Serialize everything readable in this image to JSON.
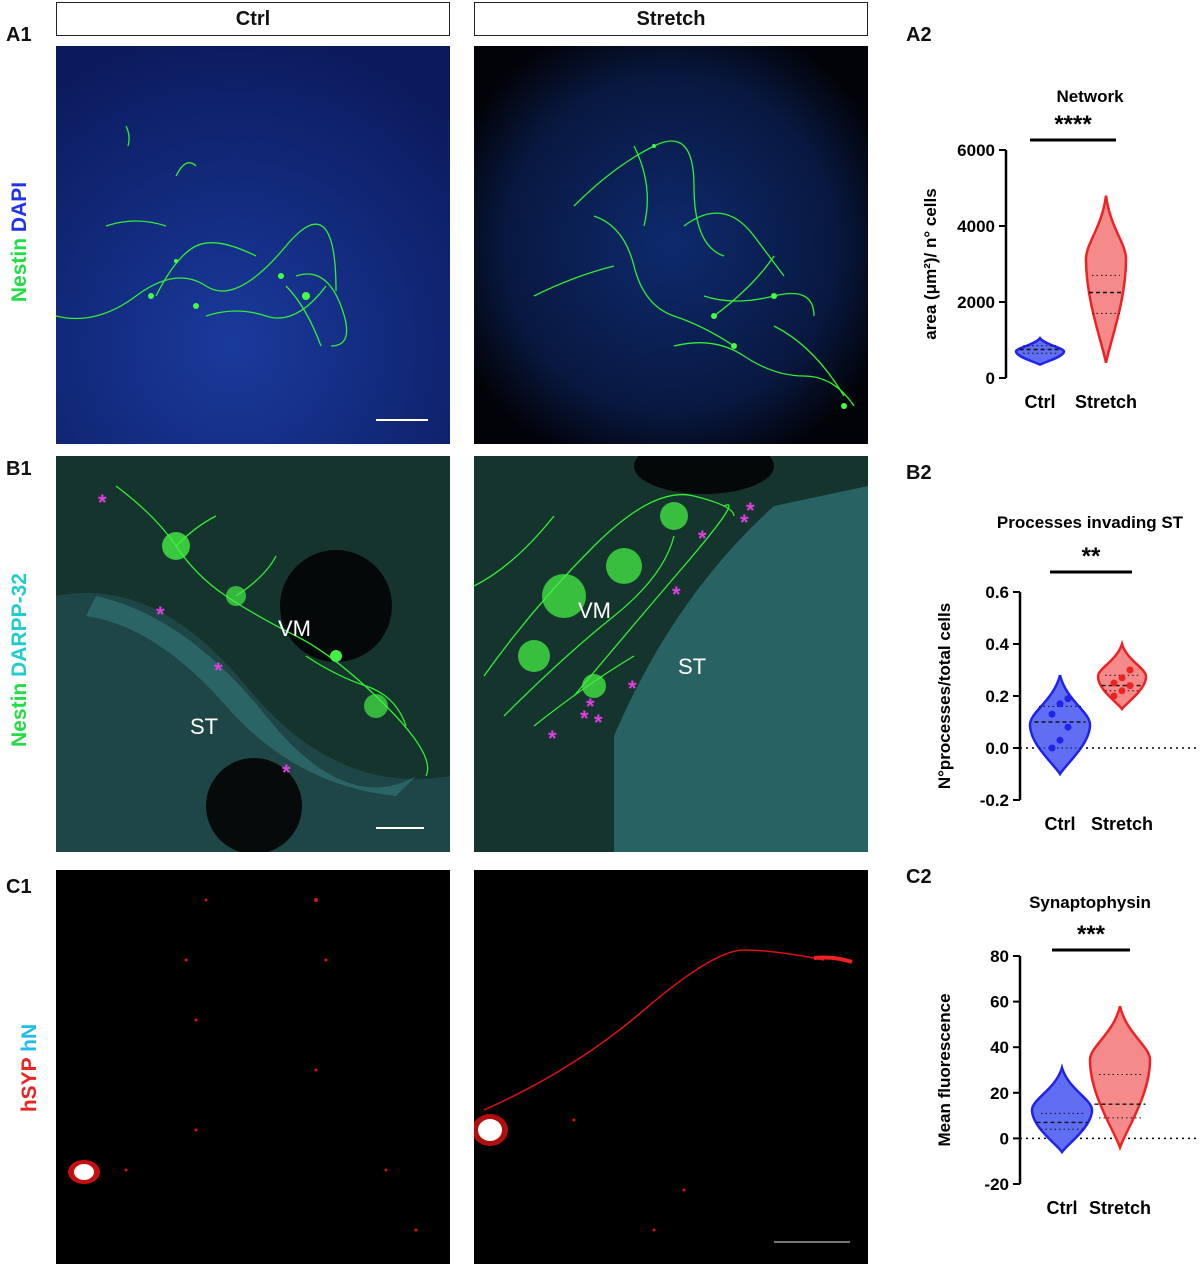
{
  "labels": {
    "a1": "A1",
    "a2": "A2",
    "b1": "B1",
    "b2": "B2",
    "c1": "C1",
    "c2": "C2",
    "col_ctrl": "Ctrl",
    "col_stretch": "Stretch"
  },
  "stain_rows": {
    "a": [
      {
        "text": "Nestin",
        "color": "#22dd44"
      },
      {
        "text": " DAPI",
        "color": "#2233ee"
      }
    ],
    "b": [
      {
        "text": "Nestin",
        "color": "#22dd44"
      },
      {
        "text": " DARPP-32",
        "color": "#22cccc"
      }
    ],
    "c": [
      {
        "text": "hSYP",
        "color": "#ee2222"
      },
      {
        "text": " hN",
        "color": "#22bbee"
      }
    ]
  },
  "image_labels": {
    "b_ctrl_vm": "VM",
    "b_ctrl_st": "ST",
    "b_stretch_vm": "VM",
    "b_stretch_st": "ST",
    "asterisk": "*"
  },
  "colors": {
    "ctrl": "#2222ee",
    "stretch": "#ee2222",
    "nestin": "#33ee33",
    "dapi": "#0a1f6a",
    "darpp": "#1f5a5a",
    "syp": "#ee1111"
  },
  "chart_data": [
    {
      "type": "violin",
      "title": "Network",
      "ylabel": "area (μm²)/ n° cells",
      "categories": [
        "Ctrl",
        "Stretch"
      ],
      "ylim": [
        0,
        6000
      ],
      "yticks": [
        "0",
        "2000",
        "4000",
        "6000"
      ],
      "significance": "****",
      "series": [
        {
          "name": "Ctrl",
          "min": 350,
          "max": 1050,
          "median": 750,
          "q1": 650,
          "q3": 850
        },
        {
          "name": "Stretch",
          "min": 400,
          "max": 4800,
          "median": 2250,
          "q1": 1700,
          "q3": 2700
        }
      ]
    },
    {
      "type": "violin",
      "title": "Processes invading ST",
      "ylabel": "N°processes/total cells",
      "categories": [
        "Ctrl",
        "Stretch"
      ],
      "ylim": [
        -0.2,
        0.6
      ],
      "yticks": [
        "-0.2",
        "0.0",
        "0.2",
        "0.4",
        "0.6"
      ],
      "significance": "**",
      "zero_line": true,
      "series": [
        {
          "name": "Ctrl",
          "min": -0.1,
          "max": 0.28,
          "median": 0.1,
          "q1": 0.0,
          "q3": 0.16,
          "points": [
            0.0,
            0.03,
            0.08,
            0.13,
            0.17,
            0.19
          ]
        },
        {
          "name": "Stretch",
          "min": 0.15,
          "max": 0.4,
          "median": 0.24,
          "q1": 0.22,
          "q3": 0.28,
          "points": [
            0.2,
            0.22,
            0.24,
            0.25,
            0.27,
            0.3
          ]
        }
      ]
    },
    {
      "type": "violin",
      "title": "Synaptophysin",
      "ylabel": "Mean fluorescence",
      "categories": [
        "Ctrl",
        "Stretch"
      ],
      "ylim": [
        -20,
        80
      ],
      "yticks": [
        "-20",
        "0",
        "20",
        "40",
        "60",
        "80"
      ],
      "significance": "***",
      "zero_line": true,
      "series": [
        {
          "name": "Ctrl",
          "min": -6,
          "max": 31,
          "median": 7,
          "q1": 4,
          "q3": 11
        },
        {
          "name": "Stretch",
          "min": -4,
          "max": 58,
          "median": 15,
          "q1": 9,
          "q3": 28
        }
      ]
    }
  ]
}
